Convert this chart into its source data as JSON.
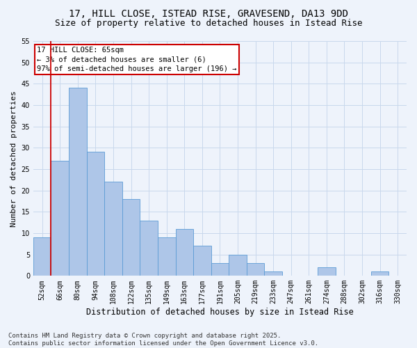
{
  "title1": "17, HILL CLOSE, ISTEAD RISE, GRAVESEND, DA13 9DD",
  "title2": "Size of property relative to detached houses in Istead Rise",
  "xlabel": "Distribution of detached houses by size in Istead Rise",
  "ylabel": "Number of detached properties",
  "categories": [
    "52sqm",
    "66sqm",
    "80sqm",
    "94sqm",
    "108sqm",
    "122sqm",
    "135sqm",
    "149sqm",
    "163sqm",
    "177sqm",
    "191sqm",
    "205sqm",
    "219sqm",
    "233sqm",
    "247sqm",
    "261sqm",
    "274sqm",
    "288sqm",
    "302sqm",
    "316sqm",
    "330sqm"
  ],
  "values": [
    9,
    27,
    44,
    29,
    22,
    18,
    13,
    9,
    11,
    7,
    3,
    5,
    3,
    1,
    0,
    0,
    2,
    0,
    0,
    1,
    0
  ],
  "bar_color": "#aec6e8",
  "bar_edge_color": "#5b9bd5",
  "grid_color": "#c8d8ec",
  "background_color": "#eef3fb",
  "annotation_box_text": "17 HILL CLOSE: 65sqm\n← 3% of detached houses are smaller (6)\n97% of semi-detached houses are larger (196) →",
  "annotation_box_color": "#ffffff",
  "annotation_box_edge_color": "#cc0000",
  "vline_color": "#cc0000",
  "ylim_max": 55,
  "yticks": [
    0,
    5,
    10,
    15,
    20,
    25,
    30,
    35,
    40,
    45,
    50,
    55
  ],
  "footnote": "Contains HM Land Registry data © Crown copyright and database right 2025.\nContains public sector information licensed under the Open Government Licence v3.0.",
  "title1_fontsize": 10,
  "title2_fontsize": 9,
  "xlabel_fontsize": 8.5,
  "ylabel_fontsize": 8,
  "tick_fontsize": 7,
  "annot_fontsize": 7.5,
  "footnote_fontsize": 6.5
}
